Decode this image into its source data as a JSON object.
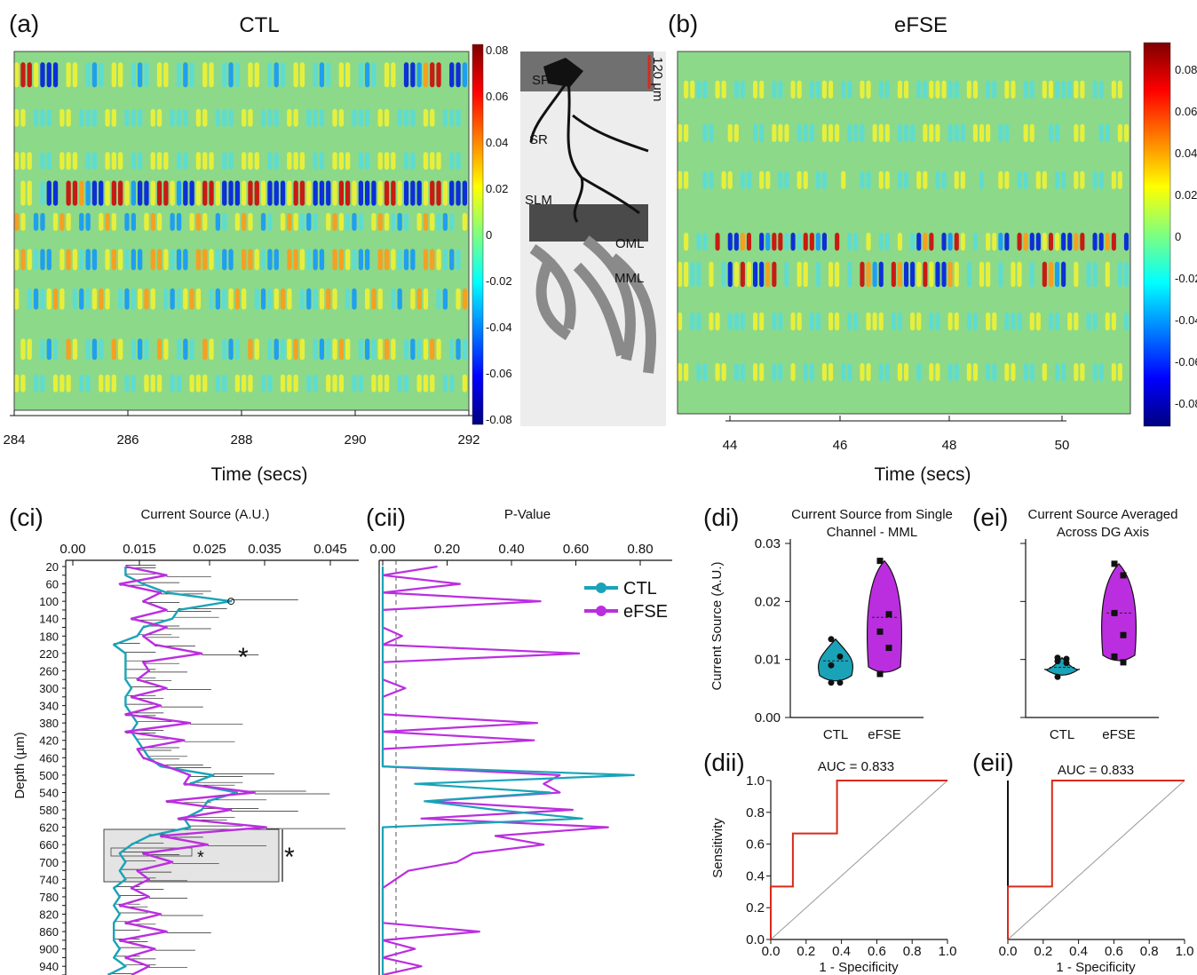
{
  "colors": {
    "ctl": "#1aa3b8",
    "efse": "#bb2ee0",
    "roc": "#d92a1a",
    "heat_bg": "#8cd98a"
  },
  "panels": {
    "a": {
      "label": "(a)",
      "title": "CTL",
      "xlabel": "Time (secs)",
      "xticks": [
        "284",
        "286",
        "288",
        "290",
        "292"
      ],
      "cbar_ticks": [
        "0.08",
        "0.06",
        "0.04",
        "0.02",
        "0",
        "-0.02",
        "-0.04",
        "-0.06",
        "-0.08"
      ]
    },
    "anat": {
      "scale": "120 μm",
      "layers": [
        "SP",
        "SR",
        "SLM",
        "OML",
        "MML"
      ]
    },
    "b": {
      "label": "(b)",
      "title": "eFSE",
      "xlabel": "Time (secs)",
      "xticks": [
        "44",
        "46",
        "48",
        "50"
      ],
      "cbar_ticks": [
        "0.08",
        "0.06",
        "0.04",
        "0.02",
        "0",
        "-0.02",
        "-0.04",
        "-0.06",
        "-0.08"
      ]
    },
    "ci": {
      "label": "(ci)",
      "title": "Current Source (A.U.)",
      "ylabel": "Depth (µm)",
      "sig_mark": "*",
      "xticks": [
        "0.00",
        "0.015",
        "0.025",
        "0.035",
        "0.045"
      ]
    },
    "cii": {
      "label": "(cii)",
      "title": "P-Value",
      "xticks": [
        "0.00",
        "0.20",
        "0.40",
        "0.60",
        "0.80"
      ]
    },
    "di": {
      "label": "(di)",
      "title": "Current Source from Single\nChannel - MML",
      "ylabel": "Current Source (A.U.)",
      "yticks": [
        "0.00",
        "0.01",
        "0.02",
        "0.03"
      ],
      "groups": [
        "CTL",
        "eFSE"
      ]
    },
    "ei": {
      "label": "(ei)",
      "title": "Current Source Averaged\nAcross DG Axis",
      "groups": [
        "CTL",
        "eFSE"
      ]
    },
    "dii": {
      "label": "(dii)",
      "auc": "AUC = 0.833",
      "xlabel": "1 - Specificity",
      "ylabel": "Sensitivity",
      "ticks": [
        "0.0",
        "0.2",
        "0.4",
        "0.6",
        "0.8",
        "1.0"
      ]
    },
    "eii": {
      "label": "(eii)",
      "auc": "AUC = 0.833",
      "xlabel": "1 - Specificity",
      "ticks": [
        "0.0",
        "0.2",
        "0.4",
        "0.6",
        "0.8",
        "1.0"
      ]
    }
  },
  "legend": [
    "CTL",
    "eFSE"
  ],
  "chart_data": [
    {
      "type": "heatmap",
      "panel": "a",
      "title": "CTL",
      "xlabel": "Time (secs)",
      "xlim": [
        284,
        292
      ],
      "clim": [
        -0.08,
        0.08
      ]
    },
    {
      "type": "heatmap",
      "panel": "b",
      "title": "eFSE",
      "xlabel": "Time (secs)",
      "xlim": [
        43.2,
        50.2
      ],
      "clim": [
        -0.09,
        0.09
      ]
    },
    {
      "type": "line",
      "panel": "ci",
      "title": "Current Source (A.U.)",
      "ylabel": "Depth (µm)",
      "depth": [
        20,
        40,
        60,
        80,
        100,
        120,
        140,
        160,
        180,
        200,
        220,
        240,
        260,
        280,
        300,
        320,
        340,
        360,
        380,
        400,
        420,
        440,
        460,
        480,
        500,
        520,
        540,
        560,
        580,
        600,
        620,
        640,
        660,
        680,
        700,
        720,
        740,
        760,
        780,
        800,
        820,
        840,
        860,
        880,
        900,
        920,
        940,
        960
      ],
      "xlim": [
        0.0,
        0.05
      ],
      "series": [
        {
          "name": "CTL",
          "values": [
            0.009,
            0.009,
            0.012,
            0.016,
            0.027,
            0.018,
            0.017,
            0.012,
            0.011,
            0.007,
            0.009,
            0.009,
            0.009,
            0.009,
            0.01,
            0.009,
            0.009,
            0.01,
            0.011,
            0.01,
            0.011,
            0.012,
            0.013,
            0.015,
            0.024,
            0.02,
            0.028,
            0.023,
            0.022,
            0.019,
            0.02,
            0.013,
            0.01,
            0.008,
            0.009,
            0.008,
            0.009,
            0.007,
            0.008,
            0.007,
            0.008,
            0.007,
            0.007,
            0.007,
            0.008,
            0.007,
            0.009,
            0.006
          ]
        },
        {
          "name": "eFSE",
          "values": [
            0.009,
            0.016,
            0.008,
            0.015,
            0.012,
            0.016,
            0.01,
            0.016,
            0.012,
            0.014,
            0.022,
            0.012,
            0.013,
            0.011,
            0.016,
            0.01,
            0.015,
            0.009,
            0.02,
            0.009,
            0.019,
            0.011,
            0.012,
            0.016,
            0.02,
            0.019,
            0.031,
            0.016,
            0.027,
            0.018,
            0.033,
            0.015,
            0.023,
            0.012,
            0.017,
            0.011,
            0.013,
            0.01,
            0.013,
            0.008,
            0.015,
            0.009,
            0.016,
            0.008,
            0.014,
            0.009,
            0.013,
            0.01
          ]
        }
      ]
    },
    {
      "type": "line",
      "panel": "cii",
      "title": "P-Value",
      "xlim": [
        0.0,
        0.9
      ],
      "series": [
        {
          "name": "CTL",
          "values": [
            0.0,
            0.0,
            0.0,
            0.0,
            0.0,
            0.0,
            0.0,
            0.0,
            0.0,
            0.0,
            0.0,
            0.0,
            0.0,
            0.0,
            0.0,
            0.0,
            0.0,
            0.0,
            0.0,
            0.0,
            0.0,
            0.0,
            0.0,
            0.0,
            0.78,
            0.1,
            0.52,
            0.13,
            0.35,
            0.62,
            0.0,
            0.0,
            0.0,
            0.0,
            0.0,
            0.0,
            0.0,
            0.0,
            0.0,
            0.0,
            0.0,
            0.0,
            0.0,
            0.0,
            0.0,
            0.0,
            0.0,
            0.0
          ]
        },
        {
          "name": "eFSE",
          "values": [
            0.17,
            0.0,
            0.24,
            0.0,
            0.49,
            0.0,
            0.0,
            0.0,
            0.06,
            0.0,
            0.61,
            0.0,
            0.0,
            0.0,
            0.07,
            0.0,
            0.0,
            0.0,
            0.48,
            0.0,
            0.47,
            0.0,
            0.0,
            0.0,
            0.55,
            0.5,
            0.55,
            0.14,
            0.59,
            0.12,
            0.7,
            0.35,
            0.5,
            0.28,
            0.23,
            0.08,
            0.04,
            0.0,
            0.0,
            0.0,
            0.0,
            0.0,
            0.3,
            0.0,
            0.1,
            0.0,
            0.12,
            0.0
          ]
        }
      ]
    },
    {
      "type": "scatter",
      "panel": "di",
      "ylim": [
        0.0,
        0.03
      ],
      "series": [
        {
          "name": "CTL",
          "values": [
            0.0135,
            0.0105,
            0.009,
            0.006,
            0.006
          ]
        },
        {
          "name": "eFSE",
          "values": [
            0.027,
            0.0178,
            0.0148,
            0.012,
            0.0075
          ]
        }
      ]
    },
    {
      "type": "scatter",
      "panel": "ei",
      "ylim": [
        0.0,
        0.03
      ],
      "series": [
        {
          "name": "CTL",
          "values": [
            0.0103,
            0.0101,
            0.0097,
            0.0094,
            0.007
          ]
        },
        {
          "name": "eFSE",
          "values": [
            0.0265,
            0.0245,
            0.018,
            0.0142,
            0.0105,
            0.0095
          ]
        }
      ]
    },
    {
      "type": "line",
      "panel": "dii",
      "xlim": [
        0,
        1
      ],
      "ylim": [
        0,
        1
      ],
      "x": [
        0,
        0,
        0.125,
        0.125,
        0.375,
        0.375,
        1.0
      ],
      "y": [
        0,
        0.333,
        0.333,
        0.667,
        0.667,
        1.0,
        1.0
      ]
    },
    {
      "type": "line",
      "panel": "eii",
      "xlim": [
        0,
        1
      ],
      "ylim": [
        0,
        1
      ],
      "x": [
        0,
        0,
        0.25,
        0.25,
        1.0
      ],
      "y": [
        0,
        0.333,
        0.333,
        1.0,
        1.0
      ]
    }
  ]
}
